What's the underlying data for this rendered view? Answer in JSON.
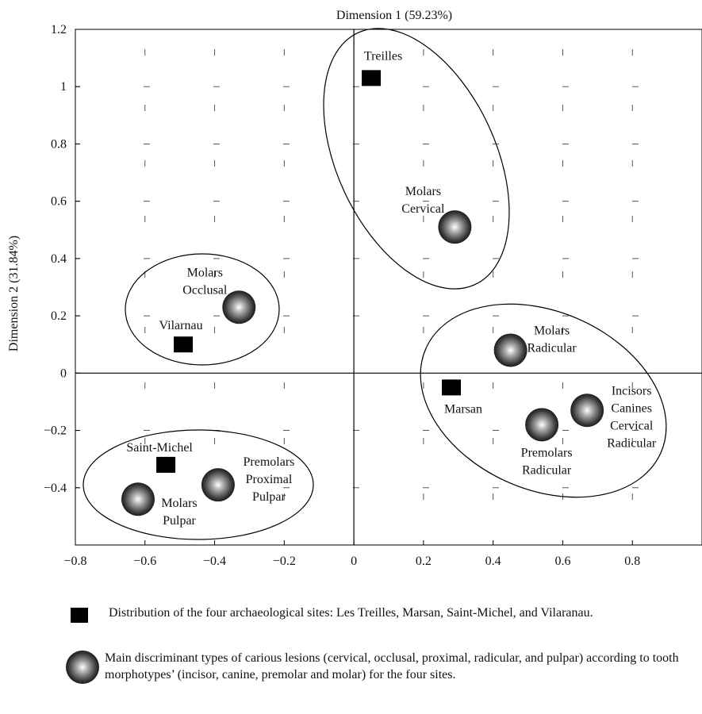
{
  "chart_data": {
    "type": "scatter",
    "xlabel": "Dimension 1 (59.23%)",
    "ylabel": "Dimension 2 (31.84%)",
    "xlim": [
      -0.8,
      1.0
    ],
    "ylim": [
      -0.6,
      1.2
    ],
    "xticks": [
      -0.8,
      -0.6,
      -0.4,
      -0.2,
      0,
      0.2,
      0.4,
      0.6,
      0.8
    ],
    "yticks": [
      1.2,
      1,
      0.8,
      0.6,
      0.4,
      0.2,
      0,
      -0.2,
      -0.4
    ],
    "xtick_labels": [
      "−0.8",
      "−0.6",
      "−0.4",
      "−0.2",
      "0",
      "0.2",
      "0.4",
      "0.6",
      "0.8"
    ],
    "ytick_labels": [
      "1.2",
      "1",
      "0.8",
      "0.6",
      "0.4",
      "0.2",
      "0",
      "−0.2",
      "−0.4"
    ],
    "grid": "dashed",
    "sites": [
      {
        "label": "Treilles",
        "x": 0.05,
        "y": 1.03
      },
      {
        "label": "Vilarnau",
        "x": -0.49,
        "y": 0.1
      },
      {
        "label": "Marsan",
        "x": 0.28,
        "y": -0.05
      },
      {
        "label": "Saint-Michel",
        "x": -0.54,
        "y": -0.32
      }
    ],
    "lesions": [
      {
        "lines": [
          "Molars",
          "Cervical"
        ],
        "x": 0.29,
        "y": 0.51
      },
      {
        "lines": [
          "Molars",
          "Occlusal"
        ],
        "x": -0.33,
        "y": 0.23
      },
      {
        "lines": [
          "Molars",
          "Radicular"
        ],
        "x": 0.45,
        "y": 0.08
      },
      {
        "lines": [
          "Incisors",
          "Canines",
          "Cervical",
          "Radicular"
        ],
        "x": 0.67,
        "y": -0.13
      },
      {
        "lines": [
          "Premolars",
          "Radicular"
        ],
        "x": 0.54,
        "y": -0.18
      },
      {
        "lines": [
          "Premolars",
          "Proximal",
          "Pulpar"
        ],
        "x": -0.39,
        "y": -0.39
      },
      {
        "lines": [
          "Molars",
          "Pulpar"
        ],
        "x": -0.62,
        "y": -0.44
      }
    ],
    "ellipse_groups": [
      [
        "Treilles",
        "Molars Cervical"
      ],
      [
        "Vilarnau",
        "Molars Occlusal"
      ],
      [
        "Marsan",
        "Molars Radicular",
        "Incisors Canines Cervical Radicular",
        "Premolars Radicular"
      ],
      [
        "Saint-Michel",
        "Premolars Proximal Pulpar",
        "Molars Pulpar"
      ]
    ]
  },
  "legend": {
    "sites_text": "Distribution of the four archaeological sites: Les Treilles, Marsan, Saint-Michel, and Vilaranau.",
    "lesions_text": "Main discriminant types of carious lesions (cervical, occlusal, proximal, radicular, and pulpar) according to tooth morphotypes’ (incisor, canine, premolar and molar) for the four sites."
  }
}
